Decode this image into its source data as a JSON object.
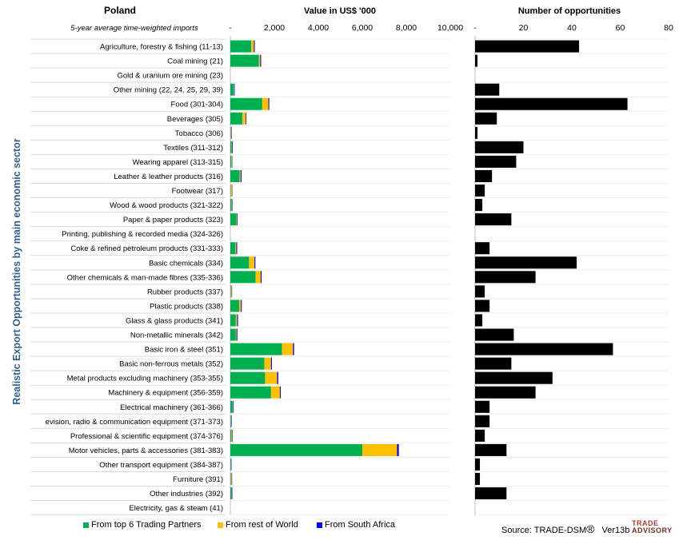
{
  "header": {
    "country": "Poland",
    "subtitle": "5-year average time-weighted imports",
    "vertical_title": "Realistic Export Opportunities by main economic sector"
  },
  "legend": [
    {
      "label": "From top 6 Trading Partners",
      "color": "#00b050"
    },
    {
      "label": "From rest of World",
      "color": "#ffc000"
    },
    {
      "label": "From South Africa",
      "color": "#0000ff"
    }
  ],
  "source": "Source: TRADE-DSM",
  "source_mark": "®",
  "version": "Ver13b",
  "logo": {
    "line1": "TRADE",
    "line2": "ADVISORY"
  },
  "chart_data": [
    {
      "type": "bar",
      "orientation": "horizontal",
      "stacked": true,
      "title": "Value in US$ '000",
      "xlim": [
        0,
        10000
      ],
      "ticks": [
        "-",
        "2,000",
        "4,000",
        "6,000",
        "8,000",
        "10,000"
      ],
      "categories": [
        "Agriculture, forestry & fishing (11-13)",
        "Coal mining (21)",
        "Gold & uranium ore mining (23)",
        "Other mining (22, 24, 25, 29, 39)",
        "Food (301-304)",
        "Beverages (305)",
        "Tobacco (306)",
        "Textiles (311-312)",
        "Wearing apparel (313-315)",
        "Leather & leather products (316)",
        "Footwear (317)",
        "Wood & wood products (321-322)",
        "Paper & paper products (323)",
        "Printing, publishing & recorded media (324-326)",
        "Coke & refined petroleum products (331-333)",
        "Basic chemicals (334)",
        "Other chemicals & man-made fibres (335-336)",
        "Rubber products (337)",
        "Plastic products (338)",
        "Glass & glass products (341)",
        "Non-metallic minerals (342)",
        "Basic iron & steel (351)",
        "Basic non-ferrous metals (352)",
        "Metal products excluding machinery (353-355)",
        "Machinery & equipment (356-359)",
        "Electrical machinery (361-366)",
        "evision, radio & communication equipment (371-373)",
        "Professional & scientific equipment (374-376)",
        "Motor vehicles, parts & accessories (381-383)",
        "Other transport equipment (384-387)",
        "Furniture (391)",
        "Other industries (392)",
        "Electricity, gas & steam (41)"
      ],
      "series": [
        {
          "name": "From top 6 Trading Partners",
          "color": "#00b050",
          "values": [
            950,
            1300,
            0,
            150,
            1450,
            550,
            20,
            60,
            50,
            420,
            20,
            60,
            270,
            0,
            230,
            850,
            1150,
            20,
            400,
            250,
            250,
            2350,
            1550,
            1580,
            1850,
            100,
            30,
            50,
            6000,
            20,
            20,
            50,
            0
          ]
        },
        {
          "name": "From rest of World",
          "color": "#ffc000",
          "values": [
            120,
            60,
            0,
            20,
            280,
            150,
            30,
            20,
            20,
            50,
            50,
            20,
            30,
            0,
            40,
            250,
            230,
            40,
            80,
            60,
            30,
            500,
            300,
            550,
            400,
            20,
            10,
            40,
            1580,
            10,
            40,
            10,
            0
          ]
        },
        {
          "name": "From South Africa",
          "color": "#0000ff",
          "values": [
            40,
            40,
            0,
            30,
            40,
            30,
            10,
            30,
            10,
            40,
            10,
            20,
            30,
            0,
            40,
            40,
            40,
            10,
            40,
            40,
            40,
            50,
            40,
            50,
            40,
            30,
            20,
            20,
            80,
            20,
            20,
            30,
            0
          ]
        }
      ]
    },
    {
      "type": "bar",
      "orientation": "horizontal",
      "title": "Number of opportunities",
      "xlim": [
        0,
        80
      ],
      "ticks": [
        "-",
        "20",
        "40",
        "60",
        "80"
      ],
      "series": [
        {
          "name": "Number of opportunities",
          "color": "#000000",
          "values": [
            43,
            1,
            0,
            10,
            63,
            9,
            1,
            20,
            17,
            7,
            4,
            3,
            15,
            0,
            6,
            42,
            25,
            4,
            6,
            3,
            16,
            57,
            15,
            32,
            25,
            6,
            6,
            4,
            13,
            2,
            2,
            13,
            0
          ]
        }
      ]
    }
  ]
}
